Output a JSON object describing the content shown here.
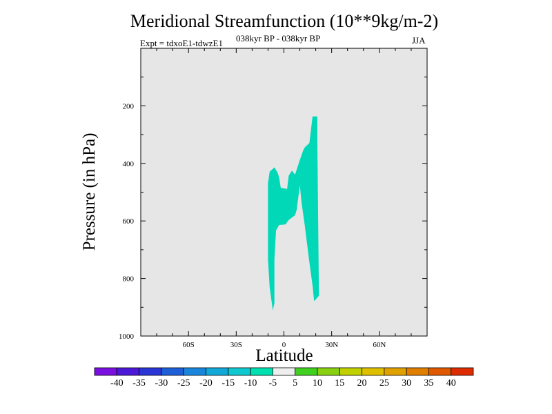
{
  "header": {
    "title": "Meridional Streamfunction (10**9kg/m-2)",
    "expt": "Expt = tdxoE1-tdwzE1",
    "period": "038kyr BP - 038kyr BP",
    "season": "JJA"
  },
  "chart_data": {
    "type": "contour",
    "title": "Meridional Streamfunction (10**9kg/m-2)",
    "xlabel": "Latitude",
    "ylabel": "Pressure (in hPa)",
    "xlim": [
      -90,
      90
    ],
    "ylim": [
      1000,
      0
    ],
    "x_ticks": [
      {
        "value": -60,
        "label": "60S"
      },
      {
        "value": -30,
        "label": "30S"
      },
      {
        "value": 0,
        "label": "0"
      },
      {
        "value": 30,
        "label": "30N"
      },
      {
        "value": 60,
        "label": "60N"
      }
    ],
    "y_ticks": [
      {
        "value": 200,
        "label": "200"
      },
      {
        "value": 400,
        "label": "400"
      },
      {
        "value": 600,
        "label": "600"
      },
      {
        "value": 800,
        "label": "800"
      },
      {
        "value": 1000,
        "label": "1000"
      }
    ],
    "background_color": "#e6e6e6",
    "filled_regions": [
      {
        "level": "-10 to -5",
        "color": "#00d8b8",
        "points": [
          [
            -9,
            429
          ],
          [
            -6,
            414
          ],
          [
            -4,
            432
          ],
          [
            -3,
            450
          ],
          [
            -2,
            485
          ],
          [
            2,
            489
          ],
          [
            3,
            443
          ],
          [
            5,
            425
          ],
          [
            6,
            432
          ],
          [
            7,
            439
          ],
          [
            10,
            388
          ],
          [
            12,
            356
          ],
          [
            13,
            345
          ],
          [
            16,
            329
          ],
          [
            18,
            237
          ],
          [
            21,
            237
          ],
          [
            21,
            317
          ],
          [
            22,
            860
          ],
          [
            19,
            879
          ],
          [
            18,
            825
          ],
          [
            16,
            744
          ],
          [
            13,
            612
          ],
          [
            11,
            534
          ],
          [
            10,
            476
          ],
          [
            8,
            562
          ],
          [
            7,
            580
          ],
          [
            3,
            597
          ],
          [
            1,
            612
          ],
          [
            -3,
            614
          ],
          [
            -5,
            633
          ],
          [
            -6,
            736
          ],
          [
            -6,
            885
          ],
          [
            -7,
            911
          ],
          [
            -9,
            830
          ],
          [
            -10,
            734
          ],
          [
            -10,
            635
          ],
          [
            -10,
            559
          ],
          [
            -10,
            469
          ]
        ]
      }
    ],
    "colorbar": {
      "labels": [
        "-40",
        "-35",
        "-30",
        "-25",
        "-20",
        "-15",
        "-10",
        "-5",
        "5",
        "10",
        "15",
        "20",
        "25",
        "30",
        "35",
        "40"
      ],
      "colors": [
        "#7a10e0",
        "#4c18d8",
        "#2a35d6",
        "#1e5fd8",
        "#1a86db",
        "#12a8d8",
        "#10c8d0",
        "#00e0b0",
        "#eeeeee",
        "#40d020",
        "#88d010",
        "#c0d000",
        "#dfc000",
        "#e0a000",
        "#e07e00",
        "#e05800",
        "#dc2c00"
      ]
    }
  }
}
